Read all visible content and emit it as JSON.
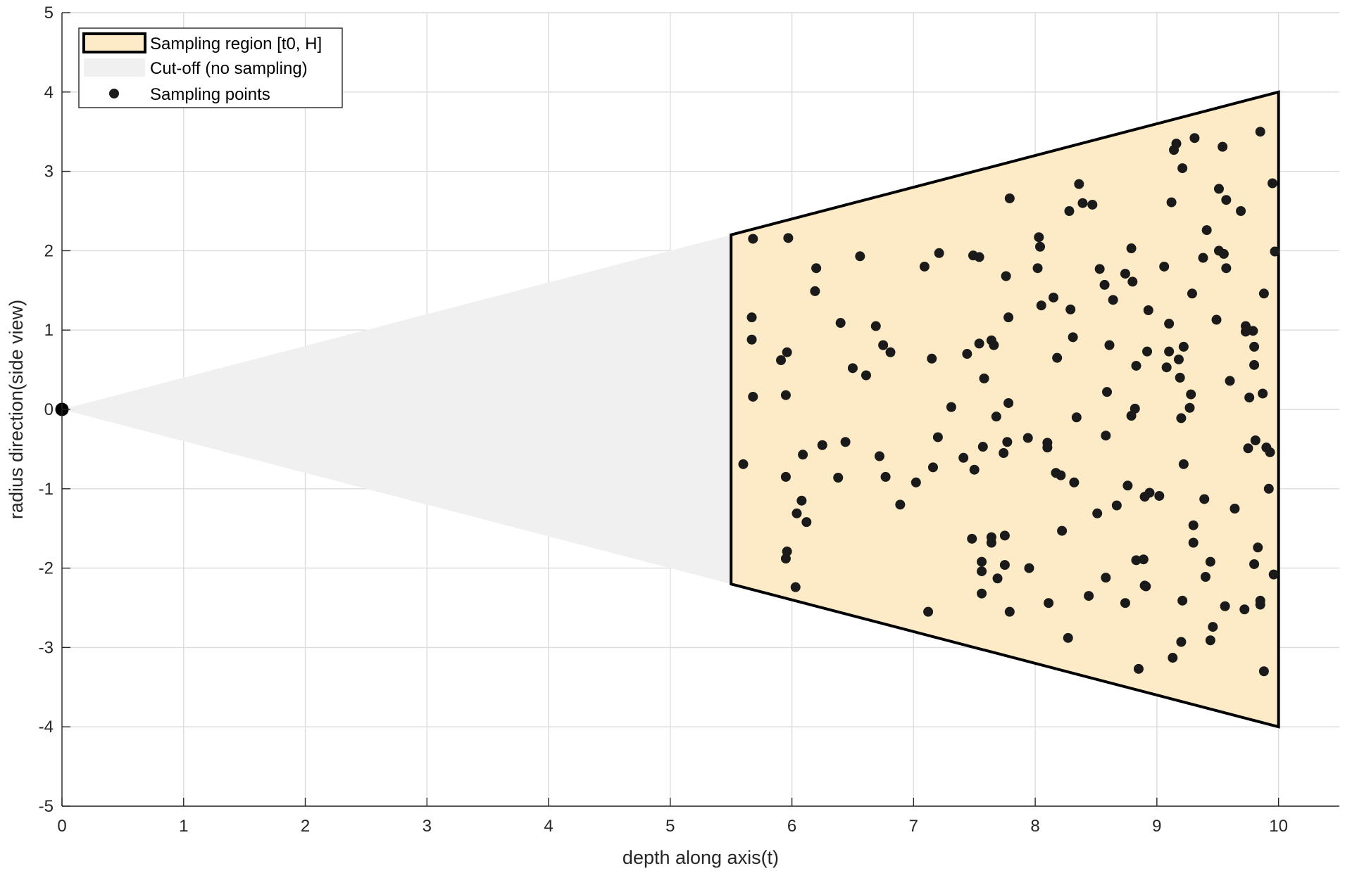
{
  "chart_data": {
    "type": "scatter",
    "title": "",
    "xlabel": "depth along axis(t)",
    "ylabel": "radius direction(side view)",
    "xlim": [
      0,
      10.5
    ],
    "ylim": [
      -5,
      5
    ],
    "xticks": [
      0,
      1,
      2,
      3,
      4,
      5,
      6,
      7,
      8,
      9,
      10
    ],
    "yticks": [
      -5,
      -4,
      -3,
      -2,
      -1,
      0,
      1,
      2,
      3,
      4,
      5
    ],
    "grid": true,
    "legend_position": "top-left",
    "colors": {
      "region_fill": "#fdebc7",
      "region_edge": "#000000",
      "cutoff_fill": "#f0f0f0",
      "points": "#1a1a1a",
      "grid": "#dcdcdc"
    },
    "legend": [
      {
        "label": "Sampling region [t0, H]",
        "kind": "region"
      },
      {
        "label": "Cut-off (no sampling)",
        "kind": "cutoff"
      },
      {
        "label": "Sampling points",
        "kind": "point"
      }
    ],
    "series": [
      {
        "name": "Sampling region [t0, H]",
        "kind": "polygon",
        "points": [
          [
            5.5,
            2.2
          ],
          [
            10,
            4
          ],
          [
            10,
            -4
          ],
          [
            5.5,
            -2.2
          ]
        ]
      },
      {
        "name": "Cut-off (no sampling)",
        "kind": "polygon",
        "points": [
          [
            0,
            0
          ],
          [
            5.5,
            2.2
          ],
          [
            5.5,
            -2.2
          ]
        ]
      },
      {
        "name": "Sampling points",
        "kind": "scatter",
        "points": [
          [
            5.68,
            2.15
          ],
          [
            5.97,
            2.16
          ],
          [
            5.67,
            1.16
          ],
          [
            5.67,
            0.88
          ],
          [
            5.68,
            0.16
          ],
          [
            5.6,
            -0.69
          ],
          [
            5.91,
            0.62
          ],
          [
            5.96,
            0.72
          ],
          [
            5.95,
            0.18
          ],
          [
            5.95,
            -0.85
          ],
          [
            6.09,
            -0.57
          ],
          [
            6.08,
            -1.15
          ],
          [
            6.04,
            -1.31
          ],
          [
            6.12,
            -1.42
          ],
          [
            5.96,
            -1.79
          ],
          [
            5.95,
            -1.88
          ],
          [
            6.03,
            -2.24
          ],
          [
            6.2,
            1.78
          ],
          [
            6.19,
            1.49
          ],
          [
            6.25,
            -0.45
          ],
          [
            6.4,
            1.09
          ],
          [
            6.38,
            -0.86
          ],
          [
            6.44,
            -0.41
          ],
          [
            6.5,
            0.52
          ],
          [
            6.56,
            1.93
          ],
          [
            6.61,
            0.43
          ],
          [
            6.69,
            1.05
          ],
          [
            6.72,
            -0.59
          ],
          [
            6.75,
            0.81
          ],
          [
            6.77,
            -0.85
          ],
          [
            6.81,
            0.72
          ],
          [
            6.89,
            -1.2
          ],
          [
            7.02,
            -0.92
          ],
          [
            7.09,
            1.8
          ],
          [
            7.12,
            -2.55
          ],
          [
            7.15,
            0.64
          ],
          [
            7.16,
            -0.73
          ],
          [
            7.2,
            -0.35
          ],
          [
            7.21,
            1.97
          ],
          [
            7.31,
            0.03
          ],
          [
            7.41,
            -0.61
          ],
          [
            7.44,
            0.7
          ],
          [
            7.49,
            1.94
          ],
          [
            7.5,
            -0.76
          ],
          [
            7.48,
            -1.63
          ],
          [
            7.54,
            1.92
          ],
          [
            7.54,
            0.83
          ],
          [
            7.57,
            -0.47
          ],
          [
            7.58,
            0.39
          ],
          [
            7.56,
            -1.92
          ],
          [
            7.56,
            -2.04
          ],
          [
            7.56,
            -2.32
          ],
          [
            7.64,
            0.87
          ],
          [
            7.66,
            0.81
          ],
          [
            7.64,
            -1.61
          ],
          [
            7.64,
            -1.68
          ],
          [
            7.68,
            -0.09
          ],
          [
            7.69,
            -2.13
          ],
          [
            7.74,
            -0.55
          ],
          [
            7.75,
            -1.96
          ],
          [
            7.75,
            -1.59
          ],
          [
            7.76,
            1.68
          ],
          [
            7.77,
            -0.41
          ],
          [
            7.78,
            1.16
          ],
          [
            7.78,
            0.08
          ],
          [
            7.79,
            -2.55
          ],
          [
            7.79,
            2.66
          ],
          [
            7.94,
            -0.36
          ],
          [
            7.95,
            -2.0
          ],
          [
            8.02,
            1.78
          ],
          [
            8.03,
            2.17
          ],
          [
            8.04,
            2.05
          ],
          [
            8.05,
            1.31
          ],
          [
            8.1,
            -0.42
          ],
          [
            8.1,
            -0.48
          ],
          [
            8.11,
            -2.44
          ],
          [
            8.15,
            1.41
          ],
          [
            8.17,
            -0.8
          ],
          [
            8.18,
            0.65
          ],
          [
            8.21,
            -0.83
          ],
          [
            8.22,
            -1.53
          ],
          [
            8.27,
            -2.88
          ],
          [
            8.28,
            2.5
          ],
          [
            8.29,
            1.26
          ],
          [
            8.31,
            0.91
          ],
          [
            8.32,
            -0.92
          ],
          [
            8.34,
            -0.1
          ],
          [
            8.36,
            2.84
          ],
          [
            8.39,
            2.6
          ],
          [
            8.44,
            -2.35
          ],
          [
            8.47,
            2.58
          ],
          [
            8.51,
            -1.31
          ],
          [
            8.53,
            1.77
          ],
          [
            8.57,
            1.57
          ],
          [
            8.58,
            -0.33
          ],
          [
            8.58,
            -2.12
          ],
          [
            8.59,
            0.22
          ],
          [
            8.61,
            0.81
          ],
          [
            8.64,
            1.38
          ],
          [
            8.67,
            -1.21
          ],
          [
            8.74,
            1.71
          ],
          [
            8.76,
            -0.96
          ],
          [
            8.74,
            -2.44
          ],
          [
            8.79,
            2.03
          ],
          [
            8.79,
            -0.08
          ],
          [
            8.8,
            1.61
          ],
          [
            8.82,
            0.01
          ],
          [
            8.83,
            0.55
          ],
          [
            8.83,
            -1.9
          ],
          [
            8.85,
            -3.27
          ],
          [
            8.89,
            -1.89
          ],
          [
            8.9,
            -1.1
          ],
          [
            8.9,
            -2.22
          ],
          [
            8.91,
            -2.23
          ],
          [
            8.92,
            0.73
          ],
          [
            8.93,
            1.25
          ],
          [
            8.94,
            -1.05
          ],
          [
            9.02,
            -1.09
          ],
          [
            9.06,
            1.8
          ],
          [
            9.08,
            0.53
          ],
          [
            9.1,
            1.08
          ],
          [
            9.1,
            0.73
          ],
          [
            9.12,
            2.61
          ],
          [
            9.13,
            -3.13
          ],
          [
            9.14,
            3.27
          ],
          [
            9.16,
            3.35
          ],
          [
            9.18,
            0.63
          ],
          [
            9.19,
            0.4
          ],
          [
            9.2,
            -0.11
          ],
          [
            9.2,
            -2.93
          ],
          [
            9.21,
            3.04
          ],
          [
            9.22,
            0.79
          ],
          [
            9.22,
            -0.69
          ],
          [
            9.21,
            -2.41
          ],
          [
            9.27,
            0.02
          ],
          [
            9.28,
            0.19
          ],
          [
            9.29,
            1.46
          ],
          [
            9.3,
            -1.46
          ],
          [
            9.3,
            -1.68
          ],
          [
            9.31,
            3.42
          ],
          [
            9.38,
            1.91
          ],
          [
            9.39,
            -1.13
          ],
          [
            9.4,
            -2.11
          ],
          [
            9.41,
            2.26
          ],
          [
            9.44,
            -1.92
          ],
          [
            9.44,
            -2.91
          ],
          [
            9.46,
            -2.74
          ],
          [
            9.49,
            1.13
          ],
          [
            9.51,
            2.78
          ],
          [
            9.51,
            2.0
          ],
          [
            9.54,
            3.31
          ],
          [
            9.55,
            1.96
          ],
          [
            9.56,
            -2.48
          ],
          [
            9.57,
            2.64
          ],
          [
            9.57,
            1.78
          ],
          [
            9.6,
            0.36
          ],
          [
            9.64,
            -1.25
          ],
          [
            9.69,
            2.5
          ],
          [
            9.72,
            -2.52
          ],
          [
            9.73,
            1.05
          ],
          [
            9.73,
            0.98
          ],
          [
            9.75,
            -0.49
          ],
          [
            9.76,
            0.15
          ],
          [
            9.79,
            0.99
          ],
          [
            9.8,
            -1.95
          ],
          [
            9.8,
            0.79
          ],
          [
            9.8,
            0.56
          ],
          [
            9.81,
            -0.39
          ],
          [
            9.83,
            -1.74
          ],
          [
            9.85,
            3.5
          ],
          [
            9.85,
            -2.41
          ],
          [
            9.85,
            -2.46
          ],
          [
            9.87,
            0.2
          ],
          [
            9.88,
            1.46
          ],
          [
            9.88,
            -3.3
          ],
          [
            9.9,
            -0.48
          ],
          [
            9.92,
            -1.0
          ],
          [
            9.93,
            -0.54
          ],
          [
            9.95,
            2.85
          ],
          [
            9.96,
            -2.08
          ],
          [
            9.97,
            1.99
          ]
        ]
      },
      {
        "name": "",
        "kind": "apex",
        "points": [
          [
            0,
            0
          ]
        ]
      }
    ]
  }
}
